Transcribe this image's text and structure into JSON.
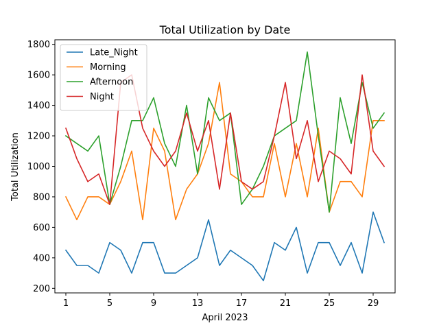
{
  "chart_data": {
    "type": "line",
    "title": "Total Utilization by Date",
    "xlabel": "April 2023",
    "ylabel": "Total Utilization",
    "x": [
      1,
      2,
      3,
      4,
      5,
      6,
      7,
      8,
      9,
      10,
      11,
      12,
      13,
      14,
      15,
      16,
      17,
      18,
      19,
      20,
      21,
      22,
      23,
      24,
      25,
      26,
      27,
      28,
      29,
      30
    ],
    "x_ticks": [
      1,
      5,
      9,
      13,
      17,
      21,
      25,
      29
    ],
    "y_ticks": [
      200,
      400,
      600,
      800,
      1000,
      1200,
      1400,
      1600,
      1800
    ],
    "xlim": [
      0,
      31
    ],
    "ylim": [
      170,
      1830
    ],
    "grid": false,
    "legend_position": "top-left",
    "series": [
      {
        "name": "Late_Night",
        "color": "#1f77b4",
        "values": [
          450,
          350,
          350,
          300,
          500,
          450,
          300,
          500,
          500,
          300,
          300,
          350,
          400,
          650,
          350,
          450,
          400,
          350,
          250,
          500,
          450,
          600,
          300,
          500,
          500,
          350,
          500,
          300,
          700,
          500
        ]
      },
      {
        "name": "Morning",
        "color": "#ff7f0e",
        "values": [
          800,
          650,
          800,
          800,
          750,
          900,
          1100,
          650,
          1250,
          1100,
          650,
          850,
          950,
          1150,
          1550,
          950,
          900,
          800,
          800,
          1150,
          800,
          1150,
          800,
          1250,
          700,
          900,
          900,
          800,
          1300,
          1300
        ]
      },
      {
        "name": "Afternoon",
        "color": "#2ca02c",
        "values": [
          1200,
          1150,
          1100,
          1200,
          750,
          1000,
          1300,
          1300,
          1450,
          1150,
          1000,
          1400,
          950,
          1450,
          1300,
          1350,
          750,
          850,
          1000,
          1200,
          1250,
          1300,
          1750,
          1200,
          700,
          1450,
          1150,
          1550,
          1250,
          1350
        ]
      },
      {
        "name": "Night",
        "color": "#d62728",
        "values": [
          1250,
          1050,
          900,
          950,
          750,
          1550,
          1600,
          1250,
          1100,
          1000,
          1100,
          1350,
          1100,
          1300,
          850,
          1350,
          900,
          850,
          900,
          1200,
          1550,
          1050,
          1300,
          900,
          1100,
          1050,
          950,
          1600,
          1100,
          1000
        ]
      }
    ]
  }
}
